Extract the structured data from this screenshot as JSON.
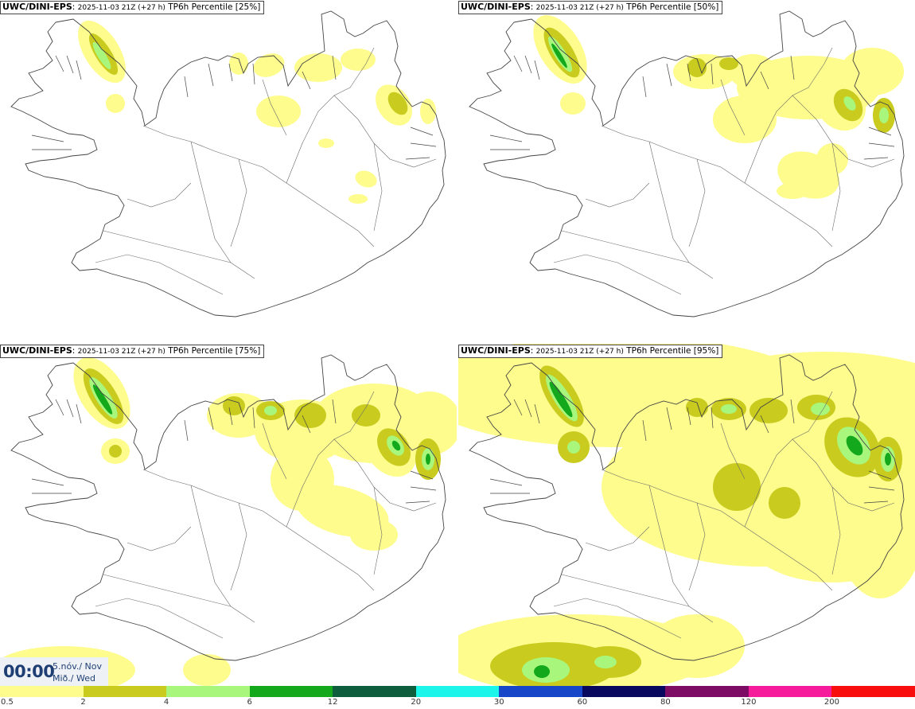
{
  "panels": [
    {
      "source": "UWC/DINI-EPS",
      "run": "2025-11-03 21Z (+27 h)",
      "label": "TP6h Percentile [25%]",
      "percentile": 25
    },
    {
      "source": "UWC/DINI-EPS",
      "run": "2025-11-03 21Z (+27 h)",
      "label": "TP6h Percentile [50%]",
      "percentile": 50
    },
    {
      "source": "UWC/DINI-EPS",
      "run": "2025-11-03 21Z (+27 h)",
      "label": "TP6h Percentile [75%]",
      "percentile": 75
    },
    {
      "source": "UWC/DINI-EPS",
      "run": "2025-11-03 21Z (+27 h)",
      "label": "TP6h Percentile [95%]",
      "percentile": 95
    }
  ],
  "valid_time": {
    "time": "00:00",
    "date_line1": "5.nóv./ Nov",
    "date_line2": "Mið./ Wed"
  },
  "legend": {
    "ticks": [
      "0.5",
      "2",
      "4",
      "6",
      "12",
      "20",
      "30",
      "60",
      "80",
      "120",
      "200"
    ],
    "colors": [
      "#fdfc8c",
      "#c9cc1e",
      "#a8f77c",
      "#14a81c",
      "#0e5e3d",
      "#1cf6ea",
      "#1746c8",
      "#08085e",
      "#7d0c64",
      "#f61b9b",
      "#f80e0c"
    ]
  },
  "map_colors": {
    "coast": "#444444",
    "roads": "#6a6a6a",
    "yellow": "#fdfc8c",
    "olive": "#c9cc1e",
    "lightgreen": "#a8f77c",
    "green": "#14a81c",
    "darkgreen": "#0e5e3d"
  }
}
